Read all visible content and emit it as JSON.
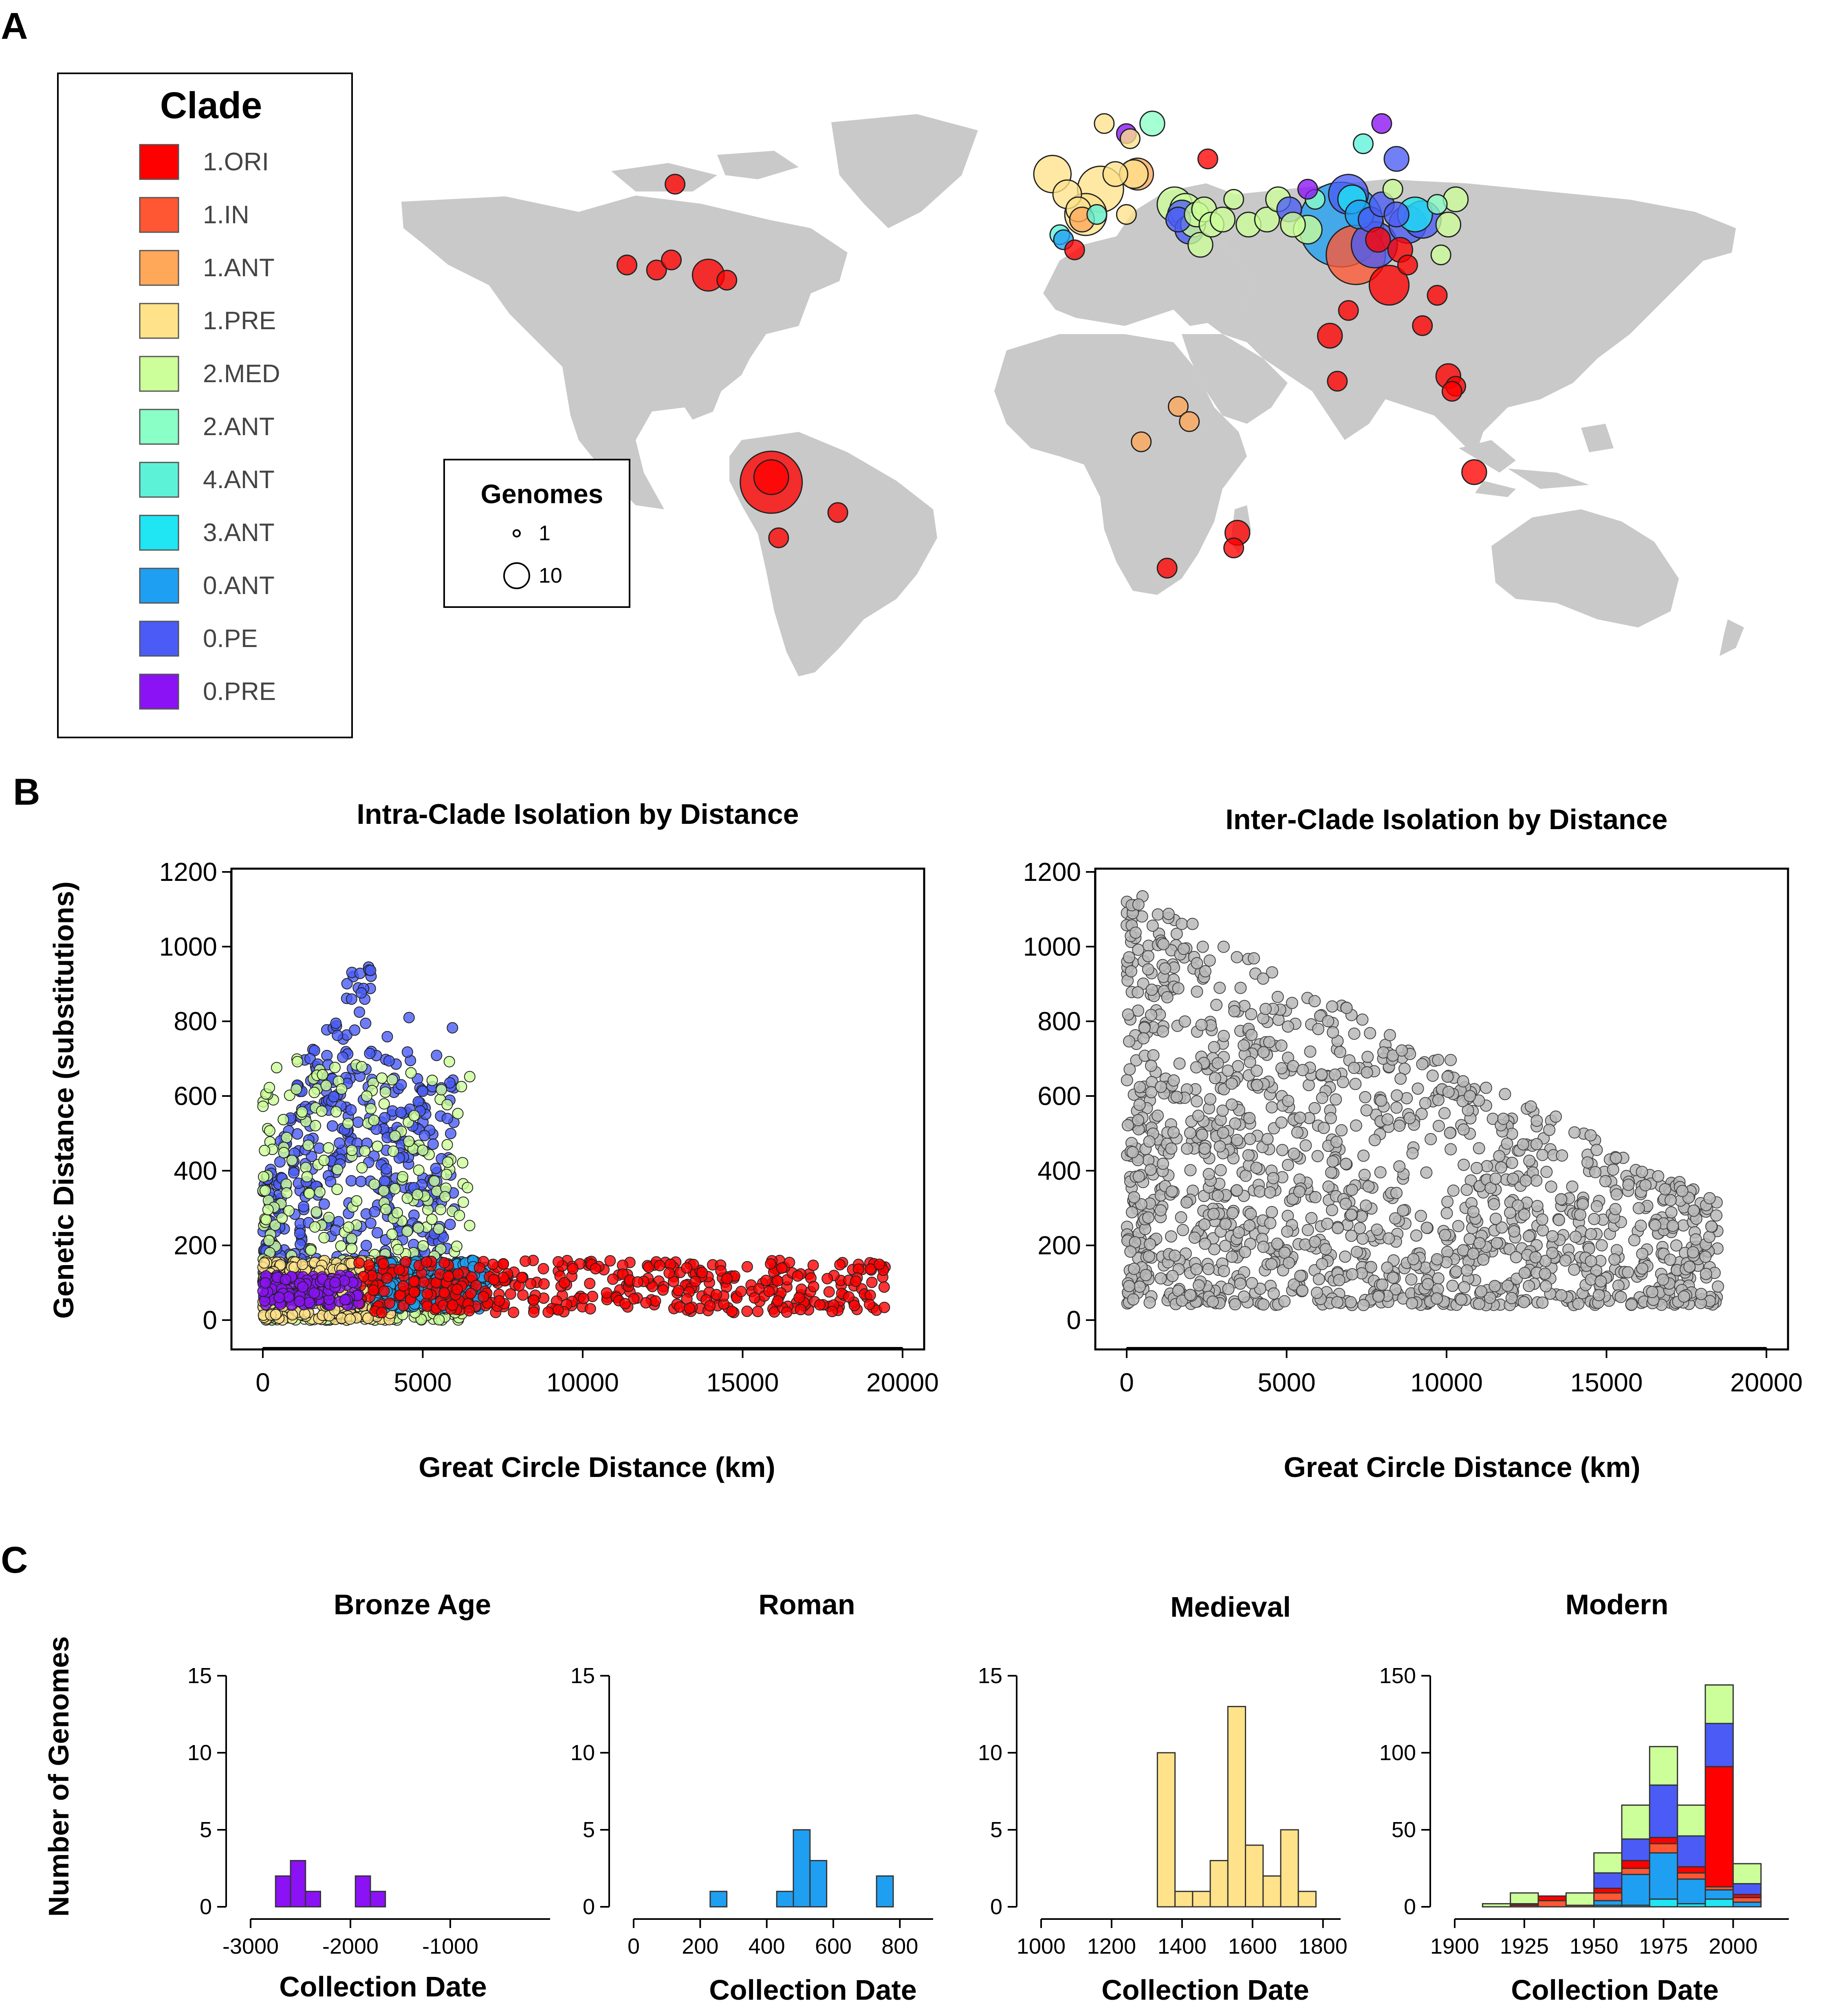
{
  "panels": {
    "a": "A",
    "b": "B",
    "c": "C"
  },
  "colors": {
    "clade_colors": [
      "#ff0000",
      "#ff5733",
      "#ffa85a",
      "#ffe28a",
      "#ccff99",
      "#8affc6",
      "#5cf2d8",
      "#1fe6f2",
      "#1f9ff2",
      "#4a5cf5",
      "#8a12f5"
    ],
    "land": "#c9c9c9",
    "inter_points": "#b9b9b9"
  },
  "legend": {
    "title": "Clade",
    "items": [
      "1.ORI",
      "1.IN",
      "1.ANT",
      "1.PRE",
      "2.MED",
      "2.ANT",
      "4.ANT",
      "3.ANT",
      "0.ANT",
      "0.PE",
      "0.PRE"
    ]
  },
  "size_legend": {
    "title": "Genomes",
    "small": "1",
    "large": "10"
  },
  "map": {
    "sites": [
      {
        "lon": -118,
        "lat": 34,
        "n": 1,
        "clade": "1.ORI"
      },
      {
        "lon": -110,
        "lat": 33,
        "n": 1,
        "clade": "1.ORI"
      },
      {
        "lon": -106,
        "lat": 35,
        "n": 1,
        "clade": "1.ORI"
      },
      {
        "lon": -105,
        "lat": 50,
        "n": 1,
        "clade": "1.ORI"
      },
      {
        "lon": -96,
        "lat": 32,
        "n": 4,
        "clade": "1.ORI"
      },
      {
        "lon": -91,
        "lat": 31,
        "n": 1,
        "clade": "1.ORI"
      },
      {
        "lon": -79,
        "lat": -9,
        "n": 20,
        "clade": "1.ORI"
      },
      {
        "lon": -79,
        "lat": -8,
        "n": 5,
        "clade": "1.ORI"
      },
      {
        "lon": -77,
        "lat": -20,
        "n": 1,
        "clade": "1.ORI"
      },
      {
        "lon": -61,
        "lat": -15,
        "n": 1,
        "clade": "1.ORI"
      },
      {
        "lon": -3,
        "lat": 52,
        "n": 6,
        "clade": "1.PRE"
      },
      {
        "lon": 1,
        "lat": 48,
        "n": 3,
        "clade": "1.PRE"
      },
      {
        "lon": 4,
        "lat": 45,
        "n": 2,
        "clade": "1.PRE"
      },
      {
        "lon": 6,
        "lat": 44,
        "n": 8,
        "clade": "1.PRE"
      },
      {
        "lon": 10,
        "lat": 49,
        "n": 10,
        "clade": "1.PRE"
      },
      {
        "lon": 14,
        "lat": 52,
        "n": 2,
        "clade": "1.PRE"
      },
      {
        "lon": 19,
        "lat": 52,
        "n": 3,
        "clade": "1.PRE"
      },
      {
        "lon": 20,
        "lat": 52,
        "n": 4,
        "clade": "1.ANT"
      },
      {
        "lon": 11,
        "lat": 62,
        "n": 1,
        "clade": "1.PRE"
      },
      {
        "lon": 17,
        "lat": 60,
        "n": 1,
        "clade": "0.PRE"
      },
      {
        "lon": 18,
        "lat": 59,
        "n": 1,
        "clade": "1.PRE"
      },
      {
        "lon": 24,
        "lat": 62,
        "n": 2,
        "clade": "2.ANT"
      },
      {
        "lon": -1,
        "lat": 40,
        "n": 1,
        "clade": "4.ANT"
      },
      {
        "lon": 0,
        "lat": 39,
        "n": 1,
        "clade": "0.ANT"
      },
      {
        "lon": 3,
        "lat": 37,
        "n": 1,
        "clade": "1.ORI"
      },
      {
        "lon": 5,
        "lat": 43,
        "n": 2,
        "clade": "1.ANT"
      },
      {
        "lon": 9,
        "lat": 44,
        "n": 1,
        "clade": "4.ANT"
      },
      {
        "lon": 17,
        "lat": 44,
        "n": 1,
        "clade": "1.PRE"
      },
      {
        "lon": 30,
        "lat": 46,
        "n": 5,
        "clade": "2.MED"
      },
      {
        "lon": 33,
        "lat": 45,
        "n": 4,
        "clade": "2.MED"
      },
      {
        "lon": 35,
        "lat": 42,
        "n": 2,
        "clade": "2.MED"
      },
      {
        "lon": 32,
        "lat": 44,
        "n": 3,
        "clade": "0.PE"
      },
      {
        "lon": 31,
        "lat": 43,
        "n": 2,
        "clade": "0.PE"
      },
      {
        "lon": 36,
        "lat": 44,
        "n": 2,
        "clade": "2.MED"
      },
      {
        "lon": 34,
        "lat": 41,
        "n": 3,
        "clade": "0.PE"
      },
      {
        "lon": 38,
        "lat": 45,
        "n": 2,
        "clade": "2.MED"
      },
      {
        "lon": 37,
        "lat": 38,
        "n": 2,
        "clade": "2.MED"
      },
      {
        "lon": 40,
        "lat": 42,
        "n": 2,
        "clade": "2.MED"
      },
      {
        "lon": 43,
        "lat": 43,
        "n": 2,
        "clade": "2.MED"
      },
      {
        "lon": 46,
        "lat": 47,
        "n": 1,
        "clade": "2.MED"
      },
      {
        "lon": 50,
        "lat": 42,
        "n": 2,
        "clade": "2.MED"
      },
      {
        "lon": 55,
        "lat": 43,
        "n": 2,
        "clade": "2.MED"
      },
      {
        "lon": 58,
        "lat": 47,
        "n": 2,
        "clade": "2.MED"
      },
      {
        "lon": 61,
        "lat": 45,
        "n": 2,
        "clade": "0.PE"
      },
      {
        "lon": 62,
        "lat": 42,
        "n": 2,
        "clade": "2.MED"
      },
      {
        "lon": 66,
        "lat": 41,
        "n": 3,
        "clade": "2.MED"
      },
      {
        "lon": 68,
        "lat": 47,
        "n": 1,
        "clade": "2.ANT"
      },
      {
        "lon": 39,
        "lat": 55,
        "n": 1,
        "clade": "1.ORI"
      },
      {
        "lon": 66,
        "lat": 49,
        "n": 1,
        "clade": "0.PRE"
      },
      {
        "lon": 75,
        "lat": 42,
        "n": 40,
        "clade": "0.ANT"
      },
      {
        "lon": 77,
        "lat": 48,
        "n": 7,
        "clade": "0.PE"
      },
      {
        "lon": 78,
        "lat": 47,
        "n": 3,
        "clade": "3.ANT"
      },
      {
        "lon": 80,
        "lat": 44,
        "n": 3,
        "clade": "0.ANT"
      },
      {
        "lon": 83,
        "lat": 43,
        "n": 2,
        "clade": "0.PE"
      },
      {
        "lon": 79,
        "lat": 36,
        "n": 18,
        "clade": "1.IN"
      },
      {
        "lon": 84,
        "lat": 38,
        "n": 10,
        "clade": "0.PE"
      },
      {
        "lon": 85,
        "lat": 39,
        "n": 2,
        "clade": "1.ORI"
      },
      {
        "lon": 88,
        "lat": 30,
        "n": 7,
        "clade": "1.ORI"
      },
      {
        "lon": 86,
        "lat": 46,
        "n": 2,
        "clade": "0.PE"
      },
      {
        "lon": 89,
        "lat": 49,
        "n": 1,
        "clade": "2.MED"
      },
      {
        "lon": 90,
        "lat": 44,
        "n": 2,
        "clade": "0.PE"
      },
      {
        "lon": 93,
        "lat": 42,
        "n": 6,
        "clade": "0.PE"
      },
      {
        "lon": 95,
        "lat": 44,
        "n": 5,
        "clade": "3.ANT"
      },
      {
        "lon": 97,
        "lat": 43,
        "n": 6,
        "clade": "0.PE"
      },
      {
        "lon": 91,
        "lat": 37,
        "n": 2,
        "clade": "1.ORI"
      },
      {
        "lon": 93,
        "lat": 34,
        "n": 1,
        "clade": "1.ORI"
      },
      {
        "lon": 101,
        "lat": 46,
        "n": 1,
        "clade": "2.ANT"
      },
      {
        "lon": 104,
        "lat": 42,
        "n": 2,
        "clade": "2.MED"
      },
      {
        "lon": 106,
        "lat": 47,
        "n": 2,
        "clade": "2.MED"
      },
      {
        "lon": 102,
        "lat": 36,
        "n": 1,
        "clade": "2.MED"
      },
      {
        "lon": 86,
        "lat": 62,
        "n": 1,
        "clade": "0.PRE"
      },
      {
        "lon": 90,
        "lat": 55,
        "n": 2,
        "clade": "0.PE"
      },
      {
        "lon": 81,
        "lat": 58,
        "n": 1,
        "clade": "4.ANT"
      },
      {
        "lon": 101,
        "lat": 28,
        "n": 1,
        "clade": "1.ORI"
      },
      {
        "lon": 77,
        "lat": 25,
        "n": 1,
        "clade": "1.ORI"
      },
      {
        "lon": 72,
        "lat": 20,
        "n": 2,
        "clade": "1.ORI"
      },
      {
        "lon": 74,
        "lat": 11,
        "n": 1,
        "clade": "1.ORI"
      },
      {
        "lon": 97,
        "lat": 22,
        "n": 1,
        "clade": "1.ORI"
      },
      {
        "lon": 104,
        "lat": 12,
        "n": 2,
        "clade": "1.ORI"
      },
      {
        "lon": 106,
        "lat": 10,
        "n": 1,
        "clade": "1.ORI"
      },
      {
        "lon": 105,
        "lat": 9,
        "n": 1,
        "clade": "1.ORI"
      },
      {
        "lon": 111,
        "lat": -7,
        "n": 2,
        "clade": "1.ORI"
      },
      {
        "lon": 31,
        "lat": 6,
        "n": 1,
        "clade": "1.ANT"
      },
      {
        "lon": 34,
        "lat": 3,
        "n": 1,
        "clade": "1.ANT"
      },
      {
        "lon": 21,
        "lat": -1,
        "n": 1,
        "clade": "1.ANT"
      },
      {
        "lon": 28,
        "lat": -26,
        "n": 1,
        "clade": "1.ORI"
      },
      {
        "lon": 47,
        "lat": -19,
        "n": 2,
        "clade": "1.ORI"
      },
      {
        "lon": 46,
        "lat": -22,
        "n": 1,
        "clade": "1.ORI"
      }
    ]
  },
  "chart_data": [
    {
      "type": "scatter",
      "title": "Intra-Clade Isolation by Distance",
      "xlabel": "Great Circle Distance (km)",
      "ylabel": "Genetic Distance (substitutions)",
      "xlim": [
        0,
        20000
      ],
      "ylim": [
        0,
        1200
      ],
      "xticks": [
        0,
        5000,
        10000,
        15000,
        20000
      ],
      "yticks": [
        0,
        200,
        400,
        600,
        800,
        1000,
        1200
      ],
      "grid": false,
      "clusters": [
        {
          "clade": "0.PE",
          "x": [
            0,
            6000
          ],
          "y": [
            100,
            970
          ],
          "density": 0.9
        },
        {
          "clade": "2.MED",
          "x": [
            0,
            6500
          ],
          "y": [
            0,
            700
          ],
          "density": 0.7
        },
        {
          "clade": "1.PRE",
          "x": [
            0,
            4000
          ],
          "y": [
            0,
            160
          ],
          "density": 0.9
        },
        {
          "clade": "0.ANT",
          "x": [
            3500,
            7000
          ],
          "y": [
            30,
            160
          ],
          "density": 0.6
        },
        {
          "clade": "1.ORI",
          "x": [
            3000,
            19500
          ],
          "y": [
            20,
            160
          ],
          "density": 0.8
        },
        {
          "clade": "0.PRE",
          "x": [
            0,
            3000
          ],
          "y": [
            40,
            120
          ],
          "density": 0.3
        }
      ]
    },
    {
      "type": "scatter",
      "title": "Inter-Clade Isolation by Distance",
      "xlabel": "Great Circle Distance (km)",
      "ylabel": "",
      "xlim": [
        0,
        20000
      ],
      "ylim": [
        0,
        1200
      ],
      "xticks": [
        0,
        5000,
        10000,
        15000,
        20000
      ],
      "yticks": [
        0,
        200,
        400,
        600,
        800,
        1000,
        1200
      ],
      "grid": false,
      "points_range": {
        "x": [
          0,
          18500
        ],
        "y": [
          40,
          1160
        ]
      }
    },
    {
      "type": "bar",
      "title": "Bronze Age",
      "xlabel": "Collection Date",
      "ylabel": "Number of Genomes",
      "xlim": [
        -3000,
        0
      ],
      "ylim": [
        0,
        16
      ],
      "xticks": [
        -3000,
        -2000,
        -1000
      ],
      "yticks": [
        0,
        5,
        10,
        15
      ],
      "bin_width": 150,
      "bins": [
        {
          "start": -2750,
          "counts": {
            "0.PRE": 2
          }
        },
        {
          "start": -2600,
          "counts": {
            "0.PRE": 3
          }
        },
        {
          "start": -2450,
          "counts": {
            "0.PRE": 1
          }
        },
        {
          "start": -1950,
          "counts": {
            "0.PRE": 2
          }
        },
        {
          "start": -1800,
          "counts": {
            "0.PRE": 1
          }
        }
      ]
    },
    {
      "type": "bar",
      "title": "Roman",
      "xlabel": "Collection Date",
      "ylabel": "",
      "xlim": [
        0,
        900
      ],
      "ylim": [
        0,
        16
      ],
      "xticks": [
        0,
        200,
        400,
        600,
        800
      ],
      "yticks": [
        0,
        5,
        10,
        15
      ],
      "bin_width": 50,
      "bins": [
        {
          "start": 230,
          "counts": {
            "0.ANT": 1
          }
        },
        {
          "start": 430,
          "counts": {
            "0.ANT": 1
          }
        },
        {
          "start": 480,
          "counts": {
            "0.ANT": 5
          }
        },
        {
          "start": 530,
          "counts": {
            "0.ANT": 3
          }
        },
        {
          "start": 730,
          "counts": {
            "0.ANT": 2
          }
        }
      ]
    },
    {
      "type": "bar",
      "title": "Medieval",
      "xlabel": "Collection Date",
      "ylabel": "",
      "xlim": [
        1000,
        1850
      ],
      "ylim": [
        0,
        16
      ],
      "xticks": [
        1000,
        1200,
        1400,
        1600,
        1800
      ],
      "yticks": [
        0,
        5,
        10,
        15
      ],
      "bin_width": 50,
      "bins": [
        {
          "start": 1330,
          "counts": {
            "1.PRE": 10
          }
        },
        {
          "start": 1380,
          "counts": {
            "1.PRE": 1
          }
        },
        {
          "start": 1430,
          "counts": {
            "1.PRE": 1
          }
        },
        {
          "start": 1480,
          "counts": {
            "1.PRE": 3
          }
        },
        {
          "start": 1530,
          "counts": {
            "1.PRE": 13
          }
        },
        {
          "start": 1580,
          "counts": {
            "1.PRE": 4
          }
        },
        {
          "start": 1630,
          "counts": {
            "1.PRE": 2
          }
        },
        {
          "start": 1680,
          "counts": {
            "1.PRE": 5
          }
        },
        {
          "start": 1730,
          "counts": {
            "1.PRE": 1
          }
        }
      ]
    },
    {
      "type": "bar",
      "title": "Modern",
      "xlabel": "Collection Date",
      "ylabel": "",
      "xlim": [
        1900,
        2020
      ],
      "ylim": [
        0,
        160
      ],
      "xticks": [
        1900,
        1925,
        1950,
        1975,
        2000
      ],
      "yticks": [
        0,
        50,
        100,
        150
      ],
      "bin_width": 10,
      "stack_order": [
        "3.ANT",
        "0.ANT",
        "1.IN",
        "1.ORI",
        "0.PE",
        "2.MED"
      ],
      "bins": [
        {
          "start": 1910,
          "counts": {
            "2.MED": 2
          }
        },
        {
          "start": 1920,
          "counts": {
            "1.ORI": 1,
            "2.MED": 7,
            "1.IN": 1
          }
        },
        {
          "start": 1930,
          "counts": {
            "1.ORI": 3,
            "1.IN": 4
          }
        },
        {
          "start": 1940,
          "counts": {
            "2.MED": 8,
            "1.IN": 1
          }
        },
        {
          "start": 1950,
          "counts": {
            "1.IN": 5,
            "1.ORI": 3,
            "0.ANT": 3,
            "0.PE": 10,
            "2.MED": 13,
            "3.ANT": 1
          }
        },
        {
          "start": 1960,
          "counts": {
            "1.IN": 4,
            "1.ORI": 5,
            "0.ANT": 20,
            "0.PE": 14,
            "2.MED": 22,
            "3.ANT": 1
          }
        },
        {
          "start": 1970,
          "counts": {
            "1.IN": 6,
            "1.ORI": 4,
            "0.ANT": 30,
            "0.PE": 34,
            "2.MED": 25,
            "3.ANT": 5
          }
        },
        {
          "start": 1980,
          "counts": {
            "1.IN": 4,
            "1.ORI": 4,
            "0.ANT": 16,
            "0.PE": 20,
            "2.MED": 20,
            "3.ANT": 2
          }
        },
        {
          "start": 1990,
          "counts": {
            "1.IN": 2,
            "1.ORI": 78,
            "0.ANT": 6,
            "0.PE": 28,
            "2.MED": 25,
            "3.ANT": 5
          }
        },
        {
          "start": 2000,
          "counts": {
            "1.IN": 3,
            "1.ORI": 2,
            "0.ANT": 3,
            "0.PE": 7,
            "2.MED": 13
          }
        }
      ]
    }
  ]
}
